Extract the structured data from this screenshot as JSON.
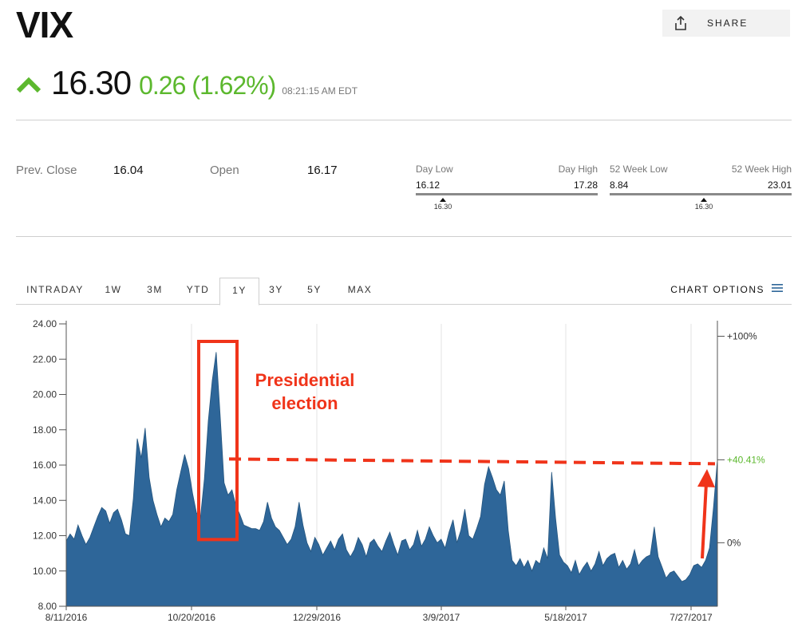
{
  "header": {
    "ticker": "VIX",
    "share_label": "SHARE",
    "price": "16.30",
    "change": "0.26 (1.62%)",
    "timestamp": "08:21:15 AM EDT",
    "icons": {
      "share": "share-icon",
      "up": "up-arrow-icon",
      "menu": "menu-icon"
    },
    "colors": {
      "up": "#5cb82e",
      "series": "#2e6699",
      "annotation": "#f0341a"
    }
  },
  "stats": {
    "prev_close_label": "Prev. Close",
    "prev_close": "16.04",
    "open_label": "Open",
    "open": "16.17",
    "day_low_label": "Day Low",
    "day_high_label": "Day High",
    "day_low": "16.12",
    "day_high": "17.28",
    "day_current": "16.30",
    "week52_low_label": "52 Week Low",
    "week52_high_label": "52 Week High",
    "week52_low": "8.84",
    "week52_high": "23.01",
    "week52_current": "16.30"
  },
  "tabs": [
    "INTRADAY",
    "1W",
    "3M",
    "YTD",
    "1Y",
    "3Y",
    "5Y",
    "MAX"
  ],
  "active_tab": "1Y",
  "chart_options_label": "CHART OPTIONS",
  "chart_data": {
    "type": "area",
    "ylim": [
      8,
      24
    ],
    "y_ticks": [
      "24.00",
      "22.00",
      "20.00",
      "18.00",
      "16.00",
      "14.00",
      "12.00",
      "10.00",
      "8.00"
    ],
    "y_tick_values": [
      24,
      22,
      20,
      18,
      16,
      14,
      12,
      10,
      8
    ],
    "right_ticks": [
      {
        "label": "+100%",
        "value": 23.3
      },
      {
        "label": "+40.41%",
        "value": 16.3
      },
      {
        "label": "0%",
        "value": 11.6
      }
    ],
    "x_ticks": [
      "8/11/2016",
      "10/20/2016",
      "12/29/2016",
      "3/9/2017",
      "5/18/2017",
      "7/27/2017"
    ],
    "grid": "vertical",
    "series": [
      {
        "values": [
          11.7,
          12.1,
          11.8,
          12.6,
          12.0,
          11.5,
          11.9,
          12.5,
          13.1,
          13.6,
          13.4,
          12.7,
          13.3,
          13.5,
          12.9,
          12.1,
          12.0,
          14.1,
          17.5,
          16.4,
          18.1,
          15.3,
          14.0,
          13.2,
          12.5,
          13.0,
          12.8,
          13.2,
          14.6,
          15.6,
          16.6,
          15.8,
          14.4,
          13.3,
          13.0,
          15.2,
          18.5,
          20.8,
          22.4,
          18.8,
          15.0,
          14.3,
          14.6,
          13.7,
          13.2,
          12.6,
          12.5,
          12.4,
          12.4,
          12.3,
          12.8,
          13.9,
          13.0,
          12.5,
          12.3,
          11.9,
          11.5,
          11.8,
          12.5,
          13.9,
          12.6,
          11.6,
          11.1,
          11.9,
          11.5,
          10.9,
          11.3,
          11.7,
          11.2,
          11.8,
          12.1,
          11.2,
          10.8,
          11.2,
          11.9,
          11.5,
          10.8,
          11.6,
          11.8,
          11.4,
          11.1,
          11.7,
          12.2,
          11.5,
          10.9,
          11.7,
          11.8,
          11.2,
          11.5,
          12.3,
          11.4,
          11.8,
          12.5,
          12.0,
          11.6,
          11.8,
          11.3,
          12.2,
          12.9,
          11.6,
          12.3,
          13.5,
          12.0,
          11.8,
          12.4,
          13.1,
          14.9,
          15.9,
          15.3,
          14.6,
          14.3,
          15.1,
          12.3,
          10.6,
          10.3,
          10.7,
          10.2,
          10.6,
          10.0,
          10.6,
          10.4,
          11.3,
          10.7,
          15.6,
          13.0,
          10.9,
          10.5,
          10.3,
          9.9,
          10.6,
          9.8,
          10.2,
          10.5,
          10.0,
          10.4,
          11.1,
          10.3,
          10.7,
          10.9,
          11.0,
          10.2,
          10.6,
          10.1,
          10.4,
          11.2,
          10.3,
          10.6,
          10.8,
          10.9,
          12.5,
          10.8,
          10.2,
          9.6,
          9.9,
          10.0,
          9.7,
          9.4,
          9.5,
          9.8,
          10.3,
          10.4,
          10.2,
          10.6,
          11.3,
          13.6,
          16.3
        ]
      }
    ],
    "annotations": {
      "label_line1": "Presidential",
      "label_line2": "election",
      "highlight_range": [
        11.6,
        24.0
      ],
      "dashed_level": 16.3
    }
  }
}
